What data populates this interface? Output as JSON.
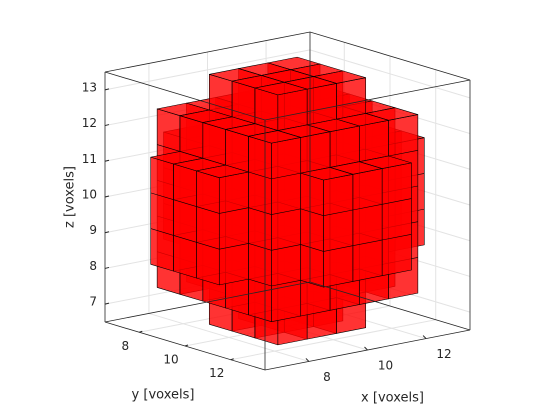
{
  "chart_data": {
    "type": "voxel",
    "xlabel": "x [voxels]",
    "ylabel": "y [voxels]",
    "zlabel": "z [voxels]",
    "xlim": [
      6.5,
      13.5
    ],
    "ylim": [
      6.5,
      13.5
    ],
    "zlim": [
      6.5,
      13.5
    ],
    "xticks": [
      8,
      10,
      12
    ],
    "yticks": [
      8,
      10,
      12
    ],
    "zticks": [
      7,
      8,
      9,
      10,
      11,
      12,
      13
    ],
    "grid": true,
    "color": "#ff0000",
    "voxel_columns": [
      [
        7,
        9,
        9,
        11
      ],
      [
        7,
        10,
        9,
        11
      ],
      [
        7,
        11,
        9,
        11
      ],
      [
        8,
        8,
        8,
        12
      ],
      [
        8,
        9,
        8,
        12
      ],
      [
        8,
        10,
        8,
        12
      ],
      [
        8,
        11,
        8,
        12
      ],
      [
        8,
        12,
        8,
        12
      ],
      [
        9,
        7,
        9,
        11
      ],
      [
        9,
        8,
        8,
        12
      ],
      [
        9,
        9,
        7,
        13
      ],
      [
        9,
        10,
        7,
        13
      ],
      [
        9,
        11,
        7,
        13
      ],
      [
        9,
        12,
        8,
        12
      ],
      [
        9,
        13,
        9,
        11
      ],
      [
        10,
        7,
        9,
        11
      ],
      [
        10,
        8,
        8,
        12
      ],
      [
        10,
        9,
        7,
        13
      ],
      [
        10,
        10,
        7,
        13
      ],
      [
        10,
        11,
        7,
        13
      ],
      [
        10,
        12,
        8,
        12
      ],
      [
        10,
        13,
        9,
        11
      ],
      [
        11,
        7,
        9,
        11
      ],
      [
        11,
        8,
        8,
        12
      ],
      [
        11,
        9,
        7,
        13
      ],
      [
        11,
        10,
        7,
        13
      ],
      [
        11,
        11,
        7,
        13
      ],
      [
        11,
        12,
        8,
        12
      ],
      [
        11,
        13,
        9,
        11
      ],
      [
        12,
        8,
        8,
        12
      ],
      [
        12,
        9,
        8,
        12
      ],
      [
        12,
        10,
        8,
        12
      ],
      [
        12,
        11,
        8,
        12
      ],
      [
        12,
        12,
        8,
        12
      ],
      [
        13,
        9,
        9,
        11
      ],
      [
        13,
        10,
        9,
        11
      ],
      [
        13,
        11,
        9,
        11
      ]
    ]
  }
}
